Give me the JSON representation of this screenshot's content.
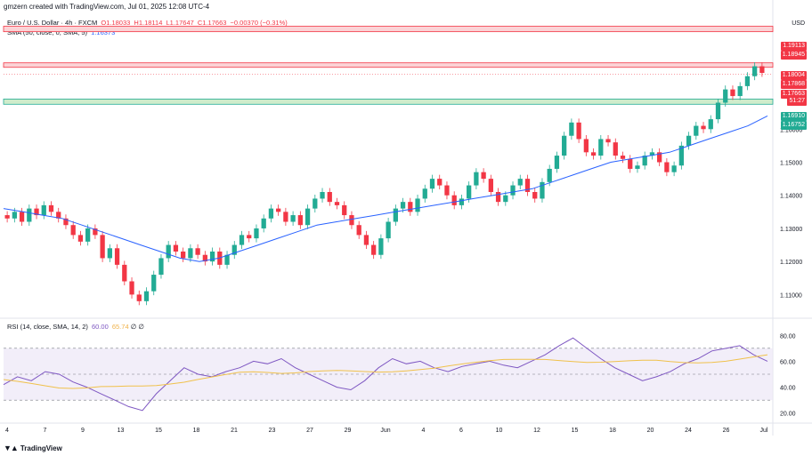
{
  "header": {
    "credit": "gmzern created with TradingView.com, Jul 01, 2025 12:08 UTC-4"
  },
  "legend": {
    "symbol": "Euro / U.S. Dollar · 4h · FXCM",
    "open": "O1.18033",
    "high": "H1.18114",
    "low": "L1.17647",
    "close": "C1.17663",
    "change": "−0.00370 (−0.31%)",
    "sma_label": "SMA (50, close, 0, SMA, 5)",
    "sma_value": "1.16373",
    "rsi_label": "RSI (14, close, SMA, 14, 2)",
    "rsi_value": "60.00",
    "rsi_sma_value": "65.74",
    "rsi_extra": "∅ ∅"
  },
  "currency": "USD",
  "price_axis": [
    "1.16000",
    "1.15000",
    "1.14000",
    "1.13000",
    "1.12000",
    "1.11000"
  ],
  "price_tags": [
    {
      "text": "1.19113",
      "color": "#f23645"
    },
    {
      "text": "1.18945",
      "color": "#f23645"
    },
    {
      "text": "1.18004",
      "color": "#f23645"
    },
    {
      "text": "1.17868",
      "color": "#f23645"
    },
    {
      "text": "1.17663",
      "color": "#f23645"
    },
    {
      "text": "51:27",
      "color": "#f23645"
    },
    {
      "text": "1.16910",
      "color": "#22ab94"
    },
    {
      "text": "1.16752",
      "color": "#22ab94"
    }
  ],
  "rsi_axis": [
    "80.00",
    "60.00",
    "40.00",
    "20.00"
  ],
  "time_axis": [
    "4",
    "7",
    "9",
    "13",
    "15",
    "18",
    "21",
    "23",
    "27",
    "29",
    "Jun",
    "4",
    "6",
    "10",
    "12",
    "15",
    "18",
    "20",
    "24",
    "26",
    "Jul"
  ],
  "footer": {
    "brand": "TradingView"
  },
  "colors": {
    "up": "#22ab94",
    "down": "#f23645",
    "sma": "#2962ff",
    "rsi": "#7e57c2",
    "rsi_sma": "#f0c14b",
    "resistance_fill": "#fbd3d6",
    "support_fill": "#cfeccb"
  },
  "chart_data": {
    "type": "candlestick",
    "timeframe": "4h",
    "ylim": [
      1.105,
      1.195
    ],
    "closes": [
      1.133,
      1.135,
      1.132,
      1.136,
      1.134,
      1.137,
      1.135,
      1.133,
      1.131,
      1.128,
      1.126,
      1.13,
      1.128,
      1.121,
      1.124,
      1.119,
      1.114,
      1.11,
      1.108,
      1.111,
      1.116,
      1.121,
      1.125,
      1.123,
      1.121,
      1.124,
      1.122,
      1.12,
      1.123,
      1.119,
      1.122,
      1.125,
      1.128,
      1.127,
      1.13,
      1.133,
      1.136,
      1.135,
      1.132,
      1.134,
      1.131,
      1.136,
      1.139,
      1.141,
      1.138,
      1.137,
      1.134,
      1.131,
      1.128,
      1.125,
      1.122,
      1.127,
      1.132,
      1.136,
      1.138,
      1.135,
      1.139,
      1.142,
      1.145,
      1.143,
      1.14,
      1.137,
      1.139,
      1.143,
      1.147,
      1.145,
      1.141,
      1.138,
      1.14,
      1.143,
      1.145,
      1.141,
      1.139,
      1.144,
      1.148,
      1.152,
      1.158,
      1.162,
      1.157,
      1.153,
      1.152,
      1.157,
      1.156,
      1.152,
      1.151,
      1.148,
      1.149,
      1.152,
      1.153,
      1.15,
      1.147,
      1.149,
      1.155,
      1.158,
      1.161,
      1.16,
      1.163,
      1.168,
      1.172,
      1.17,
      1.173,
      1.176,
      1.179,
      1.177
    ],
    "sma_50": [
      1.136,
      1.135,
      1.134,
      1.133,
      1.131,
      1.129,
      1.127,
      1.125,
      1.123,
      1.121,
      1.12,
      1.121,
      1.123,
      1.125,
      1.127,
      1.129,
      1.131,
      1.132,
      1.133,
      1.134,
      1.135,
      1.136,
      1.137,
      1.138,
      1.139,
      1.14,
      1.141,
      1.142,
      1.144,
      1.146,
      1.148,
      1.15,
      1.151,
      1.152,
      1.153,
      1.155,
      1.157,
      1.159,
      1.161,
      1.164
    ],
    "rsi": [
      42,
      48,
      45,
      52,
      50,
      44,
      40,
      35,
      30,
      25,
      22,
      35,
      45,
      55,
      50,
      48,
      52,
      55,
      60,
      58,
      62,
      55,
      50,
      45,
      40,
      38,
      45,
      55,
      62,
      58,
      60,
      55,
      52,
      56,
      58,
      60,
      57,
      55,
      60,
      65,
      72,
      78,
      70,
      62,
      55,
      50,
      45,
      48,
      52,
      58,
      62,
      68,
      70,
      72,
      65,
      60
    ]
  }
}
